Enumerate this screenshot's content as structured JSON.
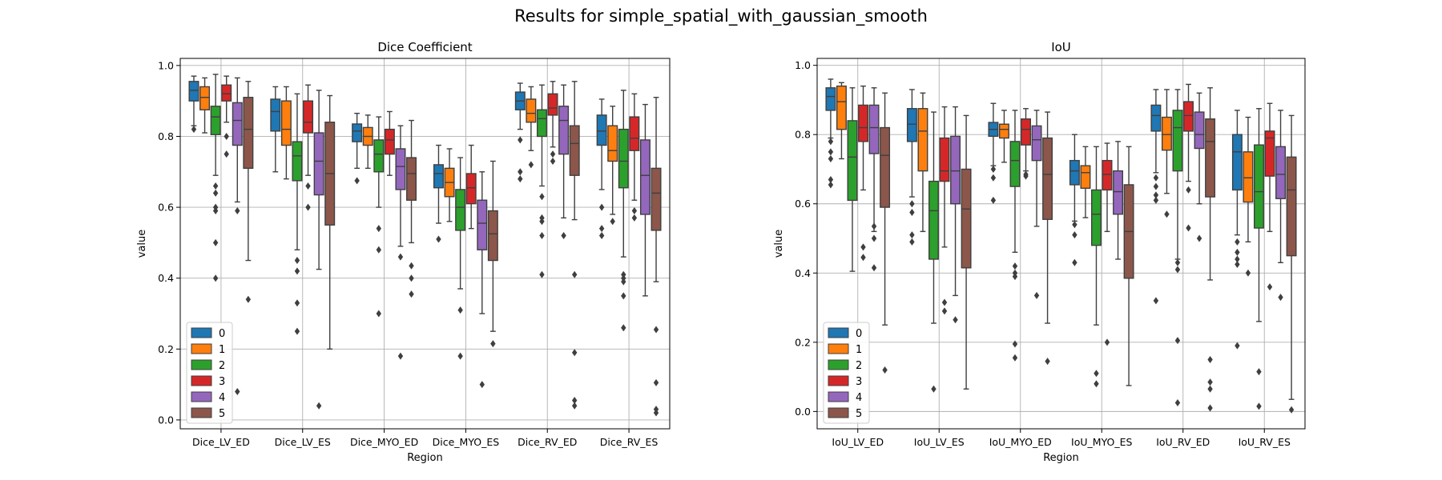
{
  "title": "Results for simple_spatial_with_gaussian_smooth",
  "chart_data": [
    {
      "type": "box",
      "title": "Dice Coefficient",
      "xlabel": "Region",
      "ylabel": "value",
      "ylim": [
        -0.025,
        1.02
      ],
      "yticks": [
        "0.0",
        "0.2",
        "0.4",
        "0.6",
        "0.8",
        "1.0"
      ],
      "categories": [
        "Dice_LV_ED",
        "Dice_LV_ES",
        "Dice_MYO_ED",
        "Dice_MYO_ES",
        "Dice_RV_ED",
        "Dice_RV_ES"
      ],
      "grid": true,
      "legend_position": "lower-left",
      "series": [
        {
          "name": "0",
          "color": "#1f77b4",
          "boxes": [
            {
              "q1": 0.9,
              "med": 0.93,
              "q3": 0.955,
              "wlo": 0.83,
              "whi": 0.97,
              "out": [
                0.82
              ]
            },
            {
              "q1": 0.815,
              "med": 0.87,
              "q3": 0.905,
              "wlo": 0.7,
              "whi": 0.94,
              "out": []
            },
            {
              "q1": 0.785,
              "med": 0.815,
              "q3": 0.835,
              "wlo": 0.71,
              "whi": 0.865,
              "out": [
                0.675
              ]
            },
            {
              "q1": 0.655,
              "med": 0.695,
              "q3": 0.72,
              "wlo": 0.555,
              "whi": 0.775,
              "out": [
                0.51
              ]
            },
            {
              "q1": 0.875,
              "med": 0.9,
              "q3": 0.925,
              "wlo": 0.82,
              "whi": 0.95,
              "out": [
                0.79,
                0.7,
                0.68
              ]
            },
            {
              "q1": 0.775,
              "med": 0.815,
              "q3": 0.86,
              "wlo": 0.65,
              "whi": 0.905,
              "out": [
                0.6,
                0.54,
                0.52
              ]
            }
          ]
        },
        {
          "name": "1",
          "color": "#ff7f0e",
          "boxes": [
            {
              "q1": 0.875,
              "med": 0.91,
              "q3": 0.94,
              "wlo": 0.81,
              "whi": 0.965,
              "out": []
            },
            {
              "q1": 0.775,
              "med": 0.82,
              "q3": 0.9,
              "wlo": 0.68,
              "whi": 0.94,
              "out": []
            },
            {
              "q1": 0.775,
              "med": 0.8,
              "q3": 0.825,
              "wlo": 0.71,
              "whi": 0.86,
              "out": []
            },
            {
              "q1": 0.63,
              "med": 0.67,
              "q3": 0.71,
              "wlo": 0.56,
              "whi": 0.765,
              "out": []
            },
            {
              "q1": 0.84,
              "med": 0.865,
              "q3": 0.905,
              "wlo": 0.76,
              "whi": 0.94,
              "out": [
                0.72
              ]
            },
            {
              "q1": 0.73,
              "med": 0.76,
              "q3": 0.83,
              "wlo": 0.58,
              "whi": 0.885,
              "out": [
                0.56
              ]
            }
          ]
        },
        {
          "name": "2",
          "color": "#2ca02c",
          "boxes": [
            {
              "q1": 0.805,
              "med": 0.855,
              "q3": 0.885,
              "wlo": 0.69,
              "whi": 0.975,
              "out": [
                0.66,
                0.64,
                0.6,
                0.59,
                0.5,
                0.4
              ]
            },
            {
              "q1": 0.675,
              "med": 0.745,
              "q3": 0.785,
              "wlo": 0.48,
              "whi": 0.92,
              "out": [
                0.45,
                0.42,
                0.33,
                0.25
              ]
            },
            {
              "q1": 0.7,
              "med": 0.75,
              "q3": 0.79,
              "wlo": 0.6,
              "whi": 0.855,
              "out": [
                0.54,
                0.48,
                0.3
              ]
            },
            {
              "q1": 0.535,
              "med": 0.6,
              "q3": 0.65,
              "wlo": 0.37,
              "whi": 0.74,
              "out": [
                0.31,
                0.18
              ]
            },
            {
              "q1": 0.8,
              "med": 0.85,
              "q3": 0.875,
              "wlo": 0.66,
              "whi": 0.945,
              "out": [
                0.63,
                0.57,
                0.56,
                0.52,
                0.41
              ]
            },
            {
              "q1": 0.655,
              "med": 0.73,
              "q3": 0.82,
              "wlo": 0.46,
              "whi": 0.93,
              "out": [
                0.41,
                0.4,
                0.39,
                0.35,
                0.26
              ]
            }
          ]
        },
        {
          "name": "3",
          "color": "#d62728",
          "boxes": [
            {
              "q1": 0.9,
              "med": 0.92,
              "q3": 0.945,
              "wlo": 0.84,
              "whi": 0.97,
              "out": [
                0.8,
                0.75
              ]
            },
            {
              "q1": 0.81,
              "med": 0.84,
              "q3": 0.9,
              "wlo": 0.69,
              "whi": 0.945,
              "out": [
                0.66,
                0.6
              ]
            },
            {
              "q1": 0.75,
              "med": 0.79,
              "q3": 0.82,
              "wlo": 0.69,
              "whi": 0.87,
              "out": []
            },
            {
              "q1": 0.61,
              "med": 0.655,
              "q3": 0.695,
              "wlo": 0.54,
              "whi": 0.775,
              "out": []
            },
            {
              "q1": 0.86,
              "med": 0.88,
              "q3": 0.92,
              "wlo": 0.77,
              "whi": 0.955,
              "out": [
                0.75,
                0.73
              ]
            },
            {
              "q1": 0.76,
              "med": 0.795,
              "q3": 0.855,
              "wlo": 0.62,
              "whi": 0.92,
              "out": [
                0.59,
                0.57
              ]
            }
          ]
        },
        {
          "name": "4",
          "color": "#9467bd",
          "boxes": [
            {
              "q1": 0.775,
              "med": 0.845,
              "q3": 0.895,
              "wlo": 0.615,
              "whi": 0.965,
              "out": [
                0.59,
                0.08
              ]
            },
            {
              "q1": 0.635,
              "med": 0.73,
              "q3": 0.81,
              "wlo": 0.425,
              "whi": 0.93,
              "out": [
                0.04
              ]
            },
            {
              "q1": 0.65,
              "med": 0.715,
              "q3": 0.765,
              "wlo": 0.49,
              "whi": 0.83,
              "out": [
                0.46,
                0.18
              ]
            },
            {
              "q1": 0.48,
              "med": 0.555,
              "q3": 0.62,
              "wlo": 0.3,
              "whi": 0.7,
              "out": [
                0.1
              ]
            },
            {
              "q1": 0.75,
              "med": 0.845,
              "q3": 0.885,
              "wlo": 0.57,
              "whi": 0.945,
              "out": [
                0.52
              ]
            },
            {
              "q1": 0.58,
              "med": 0.69,
              "q3": 0.79,
              "wlo": 0.35,
              "whi": 0.89,
              "out": []
            }
          ]
        },
        {
          "name": "5",
          "color": "#8c564b",
          "boxes": [
            {
              "q1": 0.71,
              "med": 0.82,
              "q3": 0.91,
              "wlo": 0.45,
              "whi": 0.955,
              "out": [
                0.34
              ]
            },
            {
              "q1": 0.55,
              "med": 0.695,
              "q3": 0.84,
              "wlo": 0.2,
              "whi": 0.915,
              "out": []
            },
            {
              "q1": 0.62,
              "med": 0.695,
              "q3": 0.74,
              "wlo": 0.5,
              "whi": 0.845,
              "out": [
                0.435,
                0.4,
                0.355
              ]
            },
            {
              "q1": 0.45,
              "med": 0.525,
              "q3": 0.59,
              "wlo": 0.25,
              "whi": 0.73,
              "out": [
                0.215
              ]
            },
            {
              "q1": 0.69,
              "med": 0.78,
              "q3": 0.83,
              "wlo": 0.565,
              "whi": 0.955,
              "out": [
                0.41,
                0.19,
                0.055,
                0.04
              ]
            },
            {
              "q1": 0.535,
              "med": 0.64,
              "q3": 0.71,
              "wlo": 0.39,
              "whi": 0.91,
              "out": [
                0.255,
                0.105,
                0.03,
                0.02
              ]
            }
          ]
        }
      ]
    },
    {
      "type": "box",
      "title": "IoU",
      "xlabel": "Region",
      "ylabel": "value",
      "ylim": [
        -0.05,
        1.02
      ],
      "yticks": [
        "0.0",
        "0.2",
        "0.4",
        "0.6",
        "0.8",
        "1.0"
      ],
      "categories": [
        "IoU_LV_ED",
        "IoU_LV_ES",
        "IoU_MYO_ED",
        "IoU_MYO_ES",
        "IoU_RV_ED",
        "IoU_RV_ES"
      ],
      "grid": true,
      "legend_position": "lower-left",
      "series": [
        {
          "name": "0",
          "color": "#1f77b4",
          "boxes": [
            {
              "q1": 0.87,
              "med": 0.91,
              "q3": 0.935,
              "wlo": 0.79,
              "whi": 0.96,
              "out": [
                0.78,
                0.75,
                0.73,
                0.67,
                0.655
              ]
            },
            {
              "q1": 0.78,
              "med": 0.83,
              "q3": 0.875,
              "wlo": 0.62,
              "whi": 0.93,
              "out": [
                0.6,
                0.575,
                0.51,
                0.49
              ]
            },
            {
              "q1": 0.795,
              "med": 0.815,
              "q3": 0.835,
              "wlo": 0.71,
              "whi": 0.89,
              "out": [
                0.7,
                0.675,
                0.61
              ]
            },
            {
              "q1": 0.655,
              "med": 0.695,
              "q3": 0.725,
              "wlo": 0.55,
              "whi": 0.8,
              "out": [
                0.54,
                0.51,
                0.43
              ]
            },
            {
              "q1": 0.81,
              "med": 0.855,
              "q3": 0.885,
              "wlo": 0.69,
              "whi": 0.93,
              "out": [
                0.675,
                0.65,
                0.625,
                0.61,
                0.32
              ]
            },
            {
              "q1": 0.64,
              "med": 0.75,
              "q3": 0.8,
              "wlo": 0.51,
              "whi": 0.87,
              "out": [
                0.49,
                0.46,
                0.44,
                0.425,
                0.19
              ]
            }
          ]
        },
        {
          "name": "1",
          "color": "#ff7f0e",
          "boxes": [
            {
              "q1": 0.815,
              "med": 0.895,
              "q3": 0.94,
              "wlo": 0.73,
              "whi": 0.95,
              "out": []
            },
            {
              "q1": 0.695,
              "med": 0.81,
              "q3": 0.875,
              "wlo": 0.52,
              "whi": 0.92,
              "out": []
            },
            {
              "q1": 0.79,
              "med": 0.815,
              "q3": 0.83,
              "wlo": 0.72,
              "whi": 0.87,
              "out": []
            },
            {
              "q1": 0.645,
              "med": 0.69,
              "q3": 0.71,
              "wlo": 0.56,
              "whi": 0.765,
              "out": []
            },
            {
              "q1": 0.755,
              "med": 0.8,
              "q3": 0.85,
              "wlo": 0.63,
              "whi": 0.93,
              "out": [
                0.57
              ]
            },
            {
              "q1": 0.605,
              "med": 0.675,
              "q3": 0.75,
              "wlo": 0.49,
              "whi": 0.85,
              "out": [
                0.4
              ]
            }
          ]
        },
        {
          "name": "2",
          "color": "#2ca02c",
          "boxes": [
            {
              "q1": 0.61,
              "med": 0.735,
              "q3": 0.84,
              "wlo": 0.405,
              "whi": 0.935,
              "out": []
            },
            {
              "q1": 0.44,
              "med": 0.58,
              "q3": 0.665,
              "wlo": 0.255,
              "whi": 0.865,
              "out": [
                0.065
              ]
            },
            {
              "q1": 0.65,
              "med": 0.725,
              "q3": 0.78,
              "wlo": 0.46,
              "whi": 0.87,
              "out": [
                0.42,
                0.4,
                0.39,
                0.195,
                0.155
              ]
            },
            {
              "q1": 0.48,
              "med": 0.57,
              "q3": 0.64,
              "wlo": 0.25,
              "whi": 0.765,
              "out": [
                0.11,
                0.08
              ]
            },
            {
              "q1": 0.695,
              "med": 0.82,
              "q3": 0.87,
              "wlo": 0.44,
              "whi": 0.93,
              "out": [
                0.43,
                0.41,
                0.205,
                0.025
              ]
            },
            {
              "q1": 0.53,
              "med": 0.635,
              "q3": 0.77,
              "wlo": 0.26,
              "whi": 0.875,
              "out": [
                0.115,
                0.015
              ]
            }
          ]
        },
        {
          "name": "3",
          "color": "#d62728",
          "boxes": [
            {
              "q1": 0.78,
              "med": 0.82,
              "q3": 0.885,
              "wlo": 0.64,
              "whi": 0.94,
              "out": [
                0.475,
                0.445
              ]
            },
            {
              "q1": 0.665,
              "med": 0.695,
              "q3": 0.79,
              "wlo": 0.475,
              "whi": 0.88,
              "out": [
                0.315,
                0.29
              ]
            },
            {
              "q1": 0.77,
              "med": 0.815,
              "q3": 0.845,
              "wlo": 0.695,
              "whi": 0.875,
              "out": [
                0.685,
                0.68
              ]
            },
            {
              "q1": 0.64,
              "med": 0.685,
              "q3": 0.725,
              "wlo": 0.52,
              "whi": 0.775,
              "out": [
                0.2
              ]
            },
            {
              "q1": 0.81,
              "med": 0.855,
              "q3": 0.895,
              "wlo": 0.665,
              "whi": 0.945,
              "out": [
                0.64,
                0.53
              ]
            },
            {
              "q1": 0.68,
              "med": 0.79,
              "q3": 0.81,
              "wlo": 0.52,
              "whi": 0.89,
              "out": [
                0.36
              ]
            }
          ]
        },
        {
          "name": "4",
          "color": "#9467bd",
          "boxes": [
            {
              "q1": 0.745,
              "med": 0.82,
              "q3": 0.885,
              "wlo": 0.52,
              "whi": 0.935,
              "out": [
                0.535,
                0.5,
                0.415
              ]
            },
            {
              "q1": 0.6,
              "med": 0.695,
              "q3": 0.795,
              "wlo": 0.335,
              "whi": 0.88,
              "out": [
                0.265
              ]
            },
            {
              "q1": 0.725,
              "med": 0.785,
              "q3": 0.825,
              "wlo": 0.535,
              "whi": 0.87,
              "out": [
                0.335
              ]
            },
            {
              "q1": 0.57,
              "med": 0.635,
              "q3": 0.695,
              "wlo": 0.44,
              "whi": 0.78,
              "out": []
            },
            {
              "q1": 0.76,
              "med": 0.8,
              "q3": 0.865,
              "wlo": 0.6,
              "whi": 0.92,
              "out": [
                0.5
              ]
            },
            {
              "q1": 0.615,
              "med": 0.685,
              "q3": 0.765,
              "wlo": 0.43,
              "whi": 0.87,
              "out": [
                0.33
              ]
            }
          ]
        },
        {
          "name": "5",
          "color": "#8c564b",
          "boxes": [
            {
              "q1": 0.59,
              "med": 0.74,
              "q3": 0.82,
              "wlo": 0.25,
              "whi": 0.92,
              "out": [
                0.12
              ]
            },
            {
              "q1": 0.415,
              "med": 0.585,
              "q3": 0.7,
              "wlo": 0.065,
              "whi": 0.855,
              "out": []
            },
            {
              "q1": 0.555,
              "med": 0.685,
              "q3": 0.79,
              "wlo": 0.255,
              "whi": 0.865,
              "out": [
                0.145
              ]
            },
            {
              "q1": 0.385,
              "med": 0.52,
              "q3": 0.655,
              "wlo": 0.075,
              "whi": 0.765,
              "out": []
            },
            {
              "q1": 0.62,
              "med": 0.78,
              "q3": 0.845,
              "wlo": 0.38,
              "whi": 0.935,
              "out": [
                0.15,
                0.085,
                0.065,
                0.01
              ]
            },
            {
              "q1": 0.45,
              "med": 0.64,
              "q3": 0.735,
              "wlo": 0.035,
              "whi": 0.855,
              "out": [
                0.005
              ]
            }
          ]
        }
      ]
    }
  ]
}
